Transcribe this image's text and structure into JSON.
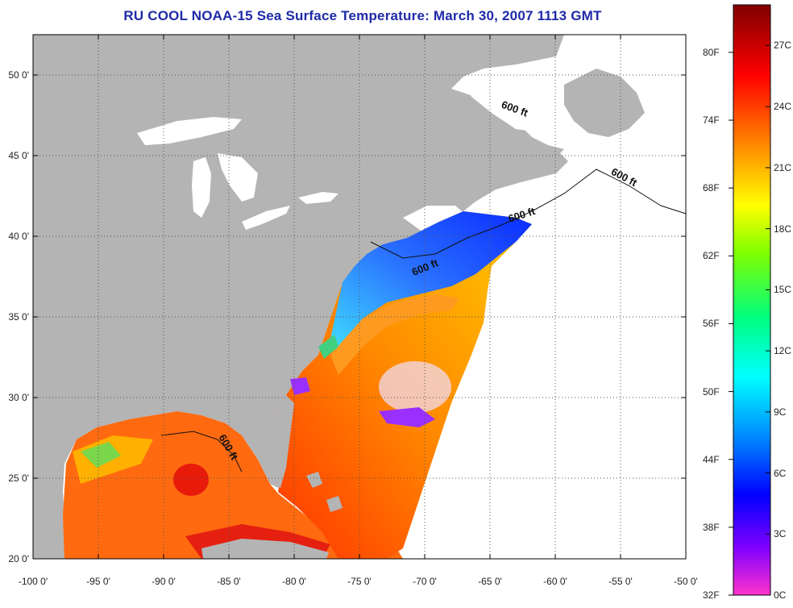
{
  "title": "RU COOL  NOAA-15  Sea Surface Temperature:  March 30, 2007 1113 GMT",
  "map": {
    "lon_range": [
      -100,
      -50
    ],
    "lat_range": [
      20,
      52.5
    ],
    "lon_ticks": [
      "-100 0'",
      "-95 0'",
      "-90 0'",
      "-85 0'",
      "-80 0'",
      "-75 0'",
      "-70 0'",
      "-65 0'",
      "-60 0'",
      "-55 0'",
      "-50 0'"
    ],
    "lat_ticks": [
      "20 0'",
      "25 0'",
      "30 0'",
      "35 0'",
      "40 0'",
      "45 0'",
      "50 0'"
    ],
    "isobath_label": "600 ft",
    "colors": {
      "land": "#b4b4b4",
      "no_data": "#ffffff"
    }
  },
  "colorbar": {
    "fahrenheit_labels": [
      "80F",
      "74F",
      "68F",
      "62F",
      "56F",
      "50F",
      "44F",
      "38F",
      "32F"
    ],
    "celsius_labels": [
      "27C",
      "24C",
      "21C",
      "18C",
      "15C",
      "12C",
      "9C",
      "6C",
      "3C",
      "0C"
    ],
    "colors": [
      "#ff33cc",
      "#8000ff",
      "#0000ff",
      "#0080ff",
      "#00ffff",
      "#00ff80",
      "#80ff00",
      "#ffff00",
      "#ff8000",
      "#ff0000",
      "#800000"
    ]
  }
}
